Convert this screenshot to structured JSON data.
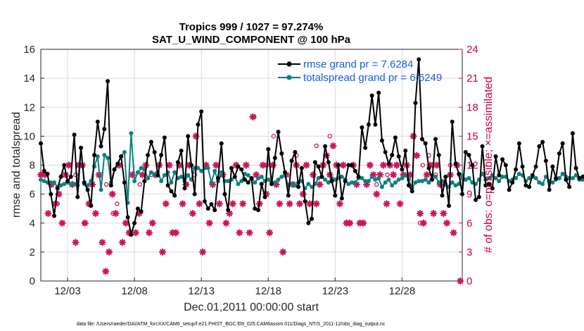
{
  "chart_data": {
    "type": "line",
    "title_line1": "Tropics 999 / 1027 = 97.274%",
    "title_line2": "SAT_U_WIND_COMPONENT @ 100 hPa",
    "xlabel": "Dec.01,2011 00:00:00 start",
    "ylabel": "rmse and totalspread",
    "y2label": "# of obs: o=possible; ×=assimilated",
    "xlim": [
      1,
      32.5
    ],
    "ylim": [
      0,
      16
    ],
    "y2lim": [
      0,
      24
    ],
    "x_ticks": [
      3,
      8,
      13,
      18,
      23,
      28
    ],
    "x_tick_labels": [
      "12/03",
      "12/08",
      "12/13",
      "12/18",
      "12/23",
      "12/28"
    ],
    "y_ticks": [
      0,
      2,
      4,
      6,
      8,
      10,
      12,
      14,
      16
    ],
    "y2_ticks": [
      0,
      3,
      6,
      9,
      12,
      15,
      18,
      21,
      24
    ],
    "footer": "data file: /Users/raeder/DAI/ATM_forcXX/CAM6_setup/f.e21.FHIST_BGC.f09_025.CAM6assim.011/Diags_NTrS_2011-12/obs_diag_output.nc",
    "colors": {
      "rmse": "#000000",
      "spread": "#0f7f7f",
      "obs": "#d0145a",
      "grid": "#dcdcdc",
      "legend_text": "#1760d8"
    },
    "series": [
      {
        "name": "rmse grand pr = 7.6284",
        "step": 0.25,
        "x_start": 1.0,
        "values": [
          9.5,
          7.6,
          7.4,
          6.0,
          4.5,
          6.4,
          7.2,
          8.0,
          6.9,
          7.2,
          10.1,
          5.8,
          9.2,
          6.8,
          6.3,
          5.2,
          8.7,
          11.0,
          9.3,
          10.5,
          13.8,
          6.6,
          7.7,
          8.1,
          8.6,
          6.8,
          4.4,
          3.2,
          4.0,
          5.0,
          4.8,
          6.9,
          8.7,
          9.6,
          8.9,
          7.3,
          8.7,
          9.9,
          6.6,
          6.2,
          5.9,
          8.2,
          9.0,
          6.4,
          10.0,
          8.0,
          6.0,
          10.8,
          11.7,
          5.5,
          5.0,
          5.3,
          4.9,
          7.1,
          9.5,
          6.0,
          4.9,
          7.8,
          7.2,
          7.9,
          7.7,
          7.0,
          6.8,
          7.1,
          5.0,
          4.9,
          6.7,
          5.8,
          9.1,
          6.7,
          8.5,
          10.3,
          8.8,
          7.5,
          5.9,
          8.3,
          8.9,
          6.5,
          7.8,
          5.5,
          4.0,
          4.3,
          8.2,
          7.9,
          7.2,
          9.3,
          8.2,
          6.9,
          5.9,
          8.0,
          5.7,
          6.9,
          8.0,
          8.0,
          7.6,
          7.2,
          10.6,
          9.2,
          10.8,
          12.8,
          10.8,
          13.0,
          9.7,
          8.9,
          8.1,
          8.7,
          9.9,
          8.6,
          7.7,
          9.0,
          6.6,
          6.2,
          12.3,
          15.3,
          9.8,
          9.5,
          7.8,
          7.0,
          9.8,
          8.7,
          5.9,
          7.2,
          5.2,
          11.0,
          8.1,
          7.4,
          6.0,
          8.9,
          8.7,
          8.0,
          5.6,
          5.8,
          9.3,
          6.6,
          6.7,
          6.4,
          8.6,
          7.3,
          8.4,
          8.0,
          6.3,
          6.8,
          7.7,
          9.5,
          7.9,
          6.6,
          6.5,
          7.3,
          7.9,
          9.3,
          9.6,
          8.3,
          6.3,
          7.9,
          7.1,
          8.8,
          9.5,
          7.0,
          6.5,
          10.2,
          7.8,
          7.1,
          7.2,
          7.5,
          9.0,
          9.8,
          8.0,
          8.9,
          7.5,
          8.2,
          8.6,
          6.4,
          6.2,
          7.4,
          8.4,
          4.6,
          3.6,
          9.3,
          6.4,
          5.0,
          9.2
        ]
      },
      {
        "name": "totalspread grand pr = 6.6249",
        "step": 0.25,
        "x_start": 1.0,
        "values": [
          7.0,
          6.9,
          6.8,
          6.8,
          6.8,
          6.5,
          6.6,
          6.7,
          6.8,
          6.7,
          6.7,
          6.6,
          9.2,
          6.7,
          6.6,
          6.9,
          7.9,
          8.6,
          6.3,
          8.7,
          8.5,
          6.8,
          7.7,
          8.1,
          8.6,
          8.9,
          5.4,
          10.2,
          6.9,
          7.5,
          7.8,
          7.7,
          7.1,
          7.5,
          7.3,
          7.5,
          6.9,
          7.3,
          7.5,
          6.8,
          7.5,
          7.1,
          7.2,
          6.9,
          7.3,
          7.0,
          7.8,
          7.8,
          7.6,
          7.8,
          7.8,
          6.8,
          7.6,
          6.9,
          7.5,
          6.9,
          6.9,
          7.0,
          7.2,
          6.7,
          6.9,
          7.4,
          7.3,
          7.1,
          6.8,
          7.1,
          7.2,
          6.9,
          7.0,
          6.8,
          6.8,
          7.0,
          7.2,
          7.3,
          6.6,
          6.7,
          6.6,
          6.8,
          6.9,
          6.4,
          6.7,
          6.5,
          6.7,
          7.1,
          7.2,
          7.0,
          6.8,
          7.1,
          7.0,
          7.1,
          7.2,
          7.0,
          6.7,
          6.8,
          6.8,
          7.1,
          7.1,
          6.9,
          6.9,
          7.2,
          7.0,
          7.1,
          6.5,
          6.8,
          7.0,
          6.6,
          6.8,
          7.0,
          7.1,
          7.3,
          7.0,
          6.4,
          6.8,
          6.9,
          6.9,
          7.0,
          6.8,
          7.3,
          7.2,
          6.8,
          6.9,
          6.7,
          6.5,
          6.8,
          6.6,
          6.7,
          7.3,
          7.0,
          7.1,
          6.8,
          6.7,
          7.0,
          7.4,
          7.0,
          7.1,
          7.3,
          7.1,
          6.9,
          7.2,
          7.2,
          6.9,
          7.0,
          7.1,
          7.4,
          7.3,
          6.9,
          7.1,
          7.2,
          7.1,
          6.8,
          6.7,
          7.2,
          6.9,
          6.8,
          7.0,
          7.1,
          7.4,
          7.2,
          7.1,
          7.1,
          7.3,
          7.0,
          7.0,
          7.2,
          7.0,
          6.8,
          6.7,
          6.9,
          7.1,
          7.3,
          7.0,
          7.6,
          8.0,
          8.2,
          7.5,
          7.8,
          7.9,
          7.5,
          7.3,
          7.7,
          7.8
        ]
      }
    ],
    "obs_assimilated": {
      "marker": "asterisk",
      "axis": "right",
      "points": [
        [
          1.0,
          11
        ],
        [
          1.3,
          11
        ],
        [
          1.55,
          7
        ],
        [
          1.8,
          10
        ],
        [
          2.1,
          8
        ],
        [
          2.35,
          9
        ],
        [
          2.6,
          6
        ],
        [
          2.85,
          11
        ],
        [
          3.1,
          12
        ],
        [
          3.35,
          10
        ],
        [
          3.6,
          4
        ],
        [
          3.85,
          12
        ],
        [
          4.1,
          12
        ],
        [
          4.3,
          6
        ],
        [
          4.6,
          8
        ],
        [
          4.85,
          10
        ],
        [
          5.1,
          7
        ],
        [
          5.35,
          11
        ],
        [
          5.6,
          4
        ],
        [
          5.85,
          1
        ],
        [
          6.1,
          3
        ],
        [
          6.35,
          9
        ],
        [
          6.6,
          7
        ],
        [
          6.85,
          12
        ],
        [
          7.1,
          4
        ],
        [
          7.35,
          6
        ],
        [
          7.6,
          5
        ],
        [
          7.85,
          11
        ],
        [
          8.1,
          5
        ],
        [
          8.35,
          7
        ],
        [
          8.6,
          11
        ],
        [
          8.85,
          12
        ],
        [
          9.1,
          5
        ],
        [
          9.35,
          6
        ],
        [
          9.6,
          11
        ],
        [
          9.85,
          12
        ],
        [
          10.1,
          3
        ],
        [
          10.35,
          8
        ],
        [
          10.6,
          12
        ],
        [
          10.85,
          5
        ],
        [
          11.1,
          5
        ],
        [
          11.35,
          12
        ],
        [
          11.6,
          8
        ],
        [
          11.85,
          10
        ],
        [
          12.1,
          12
        ],
        [
          12.35,
          7
        ],
        [
          12.6,
          15
        ],
        [
          12.85,
          8
        ],
        [
          13.1,
          3
        ],
        [
          13.35,
          12
        ],
        [
          13.6,
          6
        ],
        [
          13.85,
          10
        ],
        [
          14.1,
          12
        ],
        [
          14.35,
          8
        ],
        [
          14.6,
          11
        ],
        [
          14.85,
          6
        ],
        [
          15.1,
          7
        ],
        [
          15.35,
          8
        ],
        [
          15.6,
          12
        ],
        [
          15.85,
          5
        ],
        [
          16.1,
          8
        ],
        [
          16.35,
          12
        ],
        [
          16.6,
          5
        ],
        [
          16.85,
          17
        ],
        [
          17.1,
          11
        ],
        [
          17.35,
          8
        ],
        [
          17.6,
          12
        ],
        [
          17.85,
          9
        ],
        [
          18.1,
          5
        ],
        [
          18.35,
          12
        ],
        [
          18.6,
          10
        ],
        [
          18.85,
          8
        ],
        [
          19.1,
          3
        ],
        [
          19.35,
          11
        ],
        [
          19.6,
          8
        ],
        [
          19.85,
          10
        ],
        [
          20.1,
          12
        ],
        [
          20.35,
          8
        ],
        [
          20.6,
          9
        ],
        [
          20.85,
          12
        ],
        [
          21.1,
          8
        ],
        [
          21.35,
          11
        ],
        [
          21.6,
          8
        ],
        [
          21.85,
          10
        ],
        [
          22.1,
          12
        ],
        [
          22.35,
          13
        ],
        [
          22.6,
          11
        ],
        [
          22.85,
          14
        ],
        [
          23.1,
          12
        ],
        [
          23.35,
          8
        ],
        [
          23.6,
          12
        ],
        [
          23.85,
          6
        ],
        [
          24.1,
          6
        ],
        [
          24.35,
          12
        ],
        [
          24.6,
          10
        ],
        [
          24.85,
          6
        ],
        [
          25.1,
          6
        ],
        [
          25.35,
          10
        ],
        [
          25.6,
          12
        ],
        [
          25.85,
          11
        ],
        [
          26.1,
          9
        ],
        [
          26.35,
          11
        ],
        [
          26.6,
          12
        ],
        [
          26.85,
          8
        ],
        [
          27.1,
          12
        ],
        [
          27.35,
          11
        ],
        [
          27.6,
          12
        ],
        [
          27.85,
          8
        ],
        [
          28.1,
          11
        ],
        [
          28.35,
          12
        ],
        [
          28.6,
          11
        ],
        [
          28.85,
          15
        ],
        [
          29.1,
          13
        ],
        [
          29.35,
          7
        ],
        [
          29.6,
          6
        ],
        [
          29.85,
          11
        ],
        [
          30.1,
          12
        ],
        [
          30.35,
          7
        ],
        [
          30.6,
          12
        ],
        [
          30.85,
          10
        ],
        [
          31.1,
          7
        ],
        [
          31.35,
          6
        ],
        [
          31.6,
          11
        ],
        [
          31.85,
          5
        ],
        [
          32.1,
          12
        ],
        [
          32.35,
          0
        ]
      ]
    },
    "obs_possible": {
      "marker": "circle",
      "axis": "right",
      "points": [
        [
          1.1,
          11
        ],
        [
          2.25,
          8
        ],
        [
          3.6,
          11
        ],
        [
          4.25,
          6
        ],
        [
          5.9,
          10
        ],
        [
          6.4,
          7
        ],
        [
          6.7,
          8
        ],
        [
          8.4,
          10
        ],
        [
          9.25,
          11
        ],
        [
          11.9,
          10
        ],
        [
          12.5,
          11
        ],
        [
          16.95,
          17
        ],
        [
          17.9,
          12
        ],
        [
          18.4,
          15
        ],
        [
          20.1,
          13
        ],
        [
          21.6,
          14
        ],
        [
          22.1,
          12
        ],
        [
          22.6,
          15
        ],
        [
          23.6,
          12
        ],
        [
          26.1,
          10
        ],
        [
          26.9,
          11
        ],
        [
          29.35,
          6
        ],
        [
          29.55,
          12
        ],
        [
          30.0,
          13
        ],
        [
          30.5,
          11
        ],
        [
          31.2,
          10
        ],
        [
          31.6,
          12
        ],
        [
          32.3,
          11
        ]
      ]
    },
    "legend": {
      "position": "top-right"
    }
  }
}
